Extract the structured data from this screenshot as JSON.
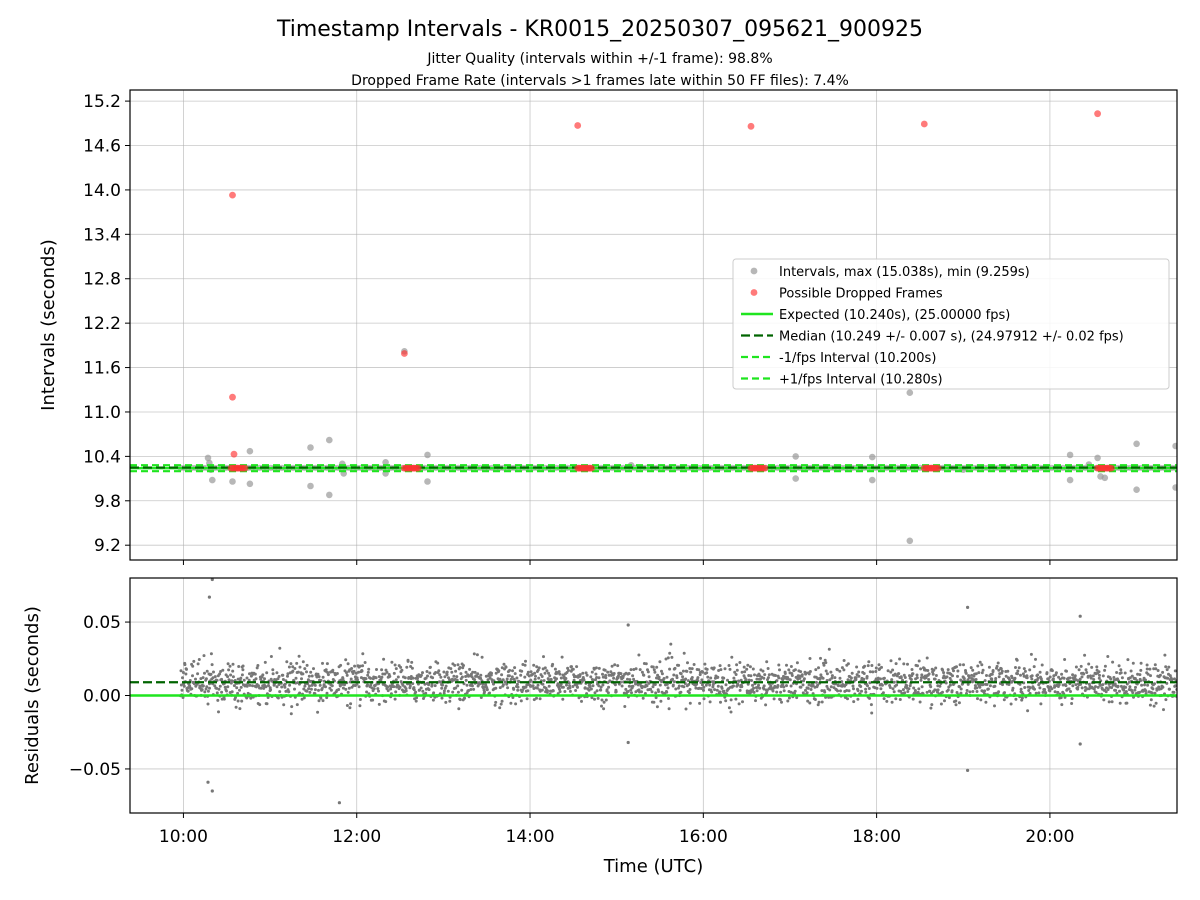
{
  "title": "Timestamp Intervals - KR0015_20250307_095621_900925",
  "subtitle_1": "Jitter Quality (intervals within +/-1 frame): 98.8%",
  "subtitle_2": "Dropped Frame Rate (intervals >1 frames late within 50 FF files): 7.4%",
  "colors": {
    "expected": "#1fe51f",
    "median": "#006400",
    "interval_points": "#999999",
    "dropped_points": "#ff3333",
    "residual_points": "#777777"
  },
  "chart_data": [
    {
      "type": "scatter",
      "panel": "intervals",
      "ylabel": "Intervals (seconds)",
      "ylim": [
        9.0,
        15.35
      ],
      "y_ticks": [
        "9.2",
        "9.8",
        "10.4",
        "11.0",
        "11.6",
        "12.2",
        "12.8",
        "13.4",
        "14.0",
        "14.6",
        "15.2"
      ],
      "x_ticks": [
        "10:00",
        "12:00",
        "14:00",
        "16:00",
        "18:00",
        "20:00"
      ],
      "xlim": [
        "09:23",
        "21:28"
      ],
      "grid": true,
      "legend_position": "center-right",
      "series": [
        {
          "name": "Intervals, max (15.038s), min (9.259s)",
          "style": "points",
          "points": [
            [
              "10:17",
              10.38
            ],
            [
              "10:18",
              10.31
            ],
            [
              "10:19",
              10.22
            ],
            [
              "10:20",
              10.08
            ],
            [
              "10:34",
              10.06
            ],
            [
              "10:46",
              10.47
            ],
            [
              "10:46",
              10.03
            ],
            [
              "11:28",
              10.52
            ],
            [
              "11:28",
              10.0
            ],
            [
              "11:41",
              10.62
            ],
            [
              "11:41",
              9.88
            ],
            [
              "11:50",
              10.3
            ],
            [
              "11:51",
              10.17
            ],
            [
              "12:20",
              10.32
            ],
            [
              "12:20",
              10.17
            ],
            [
              "12:33",
              11.82
            ],
            [
              "12:49",
              10.42
            ],
            [
              "12:49",
              10.06
            ],
            [
              "15:10",
              10.28
            ],
            [
              "17:04",
              10.4
            ],
            [
              "17:04",
              10.1
            ],
            [
              "17:57",
              10.39
            ],
            [
              "17:57",
              10.08
            ],
            [
              "18:23",
              11.26
            ],
            [
              "18:23",
              9.26
            ],
            [
              "19:00",
              10.22
            ],
            [
              "20:14",
              10.42
            ],
            [
              "20:14",
              10.08
            ],
            [
              "20:27",
              10.29
            ],
            [
              "20:33",
              10.38
            ],
            [
              "20:35",
              10.13
            ],
            [
              "20:38",
              10.11
            ],
            [
              "21:00",
              10.57
            ],
            [
              "21:00",
              9.95
            ],
            [
              "21:27",
              10.54
            ],
            [
              "21:27",
              9.98
            ]
          ]
        },
        {
          "name": "Possible Dropped Frames",
          "style": "points",
          "points": [
            [
              "10:34",
              13.93
            ],
            [
              "10:34",
              11.2
            ],
            [
              "10:35",
              10.43
            ],
            [
              "12:33",
              11.79
            ],
            [
              "14:33",
              14.87
            ],
            [
              "16:33",
              14.86
            ],
            [
              "18:33",
              14.89
            ],
            [
              "20:33",
              15.03
            ]
          ],
          "clusters": [
            [
              "10:33",
              "10:43",
              10.24
            ],
            [
              "12:33",
              "12:43",
              10.24
            ],
            [
              "14:33",
              "14:43",
              10.24
            ],
            [
              "16:33",
              "16:43",
              10.24
            ],
            [
              "18:33",
              "18:43",
              10.24
            ],
            [
              "20:33",
              "20:43",
              10.24
            ]
          ]
        },
        {
          "name": "Expected (10.240s), (25.00000 fps)",
          "style": "solid",
          "y": 10.24
        },
        {
          "name": "Median (10.249 +/- 0.007 s), (24.97912 +/- 0.02 fps)",
          "style": "dashed-dark",
          "y": 10.249
        },
        {
          "name": "-1/fps Interval (10.200s)",
          "style": "dashed",
          "y": 10.2
        },
        {
          "name": "+1/fps Interval (10.280s)",
          "style": "dashed",
          "y": 10.28
        }
      ]
    },
    {
      "type": "scatter",
      "panel": "residuals",
      "xlabel": "Time (UTC)",
      "ylabel": "Residuals (seconds)",
      "ylim": [
        -0.08,
        0.08
      ],
      "y_ticks": [
        "0.05",
        "0.00",
        "−0.05"
      ],
      "x_ticks": [
        "10:00",
        "12:00",
        "14:00",
        "16:00",
        "18:00",
        "20:00"
      ],
      "xlim": [
        "09:23",
        "21:28"
      ],
      "grid": true,
      "residual_points": {
        "x_range": [
          "09:58",
          "21:28"
        ],
        "center": 0.009,
        "spread": 0.008
      },
      "residual_outliers": [
        [
          "10:18",
          0.067
        ],
        [
          "10:20",
          0.079
        ],
        [
          "10:17",
          -0.059
        ],
        [
          "10:20",
          -0.065
        ],
        [
          "11:48",
          -0.073
        ],
        [
          "15:08",
          0.048
        ],
        [
          "15:08",
          -0.032
        ],
        [
          "19:03",
          0.06
        ],
        [
          "19:03",
          -0.051
        ],
        [
          "20:21",
          0.054
        ],
        [
          "20:21",
          -0.033
        ]
      ],
      "series": [
        {
          "name": "Expected",
          "style": "solid",
          "y": 0.0
        },
        {
          "name": "Median",
          "style": "dashed-dark",
          "y": 0.009
        }
      ]
    }
  ]
}
